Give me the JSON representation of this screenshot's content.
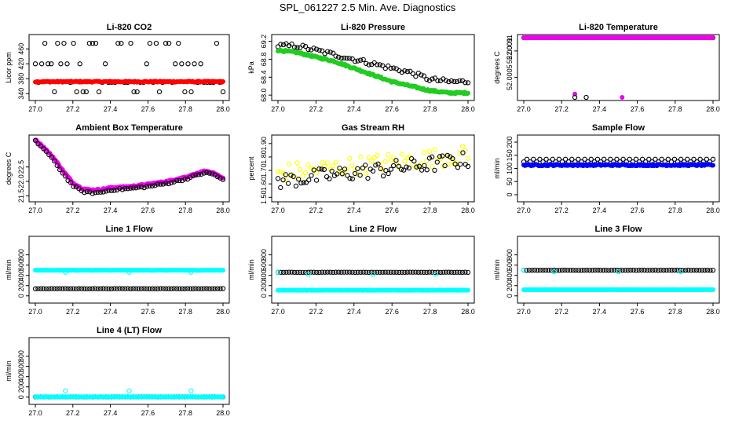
{
  "title": "SPL_061227  2.5 Min. Ave. Diagnostics",
  "colors": {
    "red": "#ff0000",
    "green": "#22cc22",
    "magenta": "#ee00ee",
    "yellow": "#ffff00",
    "blue": "#0000ff",
    "cyan": "#00ffff",
    "black": "#000000"
  },
  "x_ticks": [
    "27.0",
    "27.2",
    "27.4",
    "27.6",
    "27.8",
    "28.0"
  ],
  "chart_data": [
    {
      "type": "scatter",
      "title": "Li-820 CO2",
      "ylabel": "Licor ppm",
      "xlim": [
        27.0,
        28.0
      ],
      "ylim": [
        330,
        490
      ],
      "y_ticks": [
        "340",
        "380",
        "420",
        "460"
      ],
      "y_tick_values": [
        340,
        380,
        420,
        460
      ],
      "series": [
        {
          "name": "black",
          "color": "black",
          "marker": "open",
          "pattern": "co2_scatter",
          "levels": [
            345,
            370,
            420,
            475
          ]
        },
        {
          "name": "red",
          "color": "red",
          "marker": "filled",
          "pattern": "flat",
          "base": 372,
          "amp": 1.5
        }
      ]
    },
    {
      "type": "scatter",
      "title": "Li-820 Pressure",
      "ylabel": "kPa",
      "xlim": [
        27.0,
        28.0
      ],
      "ylim": [
        67.95,
        69.28
      ],
      "y_ticks": [
        "68.0",
        "68.4",
        "68.8",
        "69.2"
      ],
      "y_tick_values": [
        68.0,
        68.4,
        68.8,
        69.2
      ],
      "series": [
        {
          "name": "black",
          "color": "black",
          "marker": "open",
          "pattern": "trend",
          "x": [
            27.0,
            27.1,
            27.2,
            27.3,
            27.4,
            27.5,
            27.6,
            27.7,
            27.8,
            27.9,
            28.0
          ],
          "y": [
            69.1,
            69.1,
            69.0,
            68.9,
            68.8,
            68.7,
            68.6,
            68.5,
            68.35,
            68.3,
            68.3
          ],
          "noise": 0.05
        },
        {
          "name": "green",
          "color": "green",
          "marker": "filled",
          "pattern": "trend",
          "x": [
            27.0,
            27.1,
            27.2,
            27.3,
            27.4,
            27.5,
            27.6,
            27.7,
            27.8,
            27.9,
            28.0
          ],
          "y": [
            69.0,
            68.95,
            68.85,
            68.75,
            68.6,
            68.45,
            68.3,
            68.2,
            68.1,
            68.05,
            68.05
          ],
          "noise": 0.02
        }
      ]
    },
    {
      "type": "scatter",
      "title": "Li-820 Temperature",
      "ylabel": "degrees C",
      "xlim": [
        27.0,
        28.0
      ],
      "ylim": [
        52.0002,
        52.0011
      ],
      "y_ticks": [
        "52.0005",
        "52.0009"
      ],
      "y_tick_values": [
        52.0005,
        52.0009
      ],
      "side_ticks": [
        "52.0011"
      ],
      "series": [
        {
          "name": "black",
          "color": "black",
          "marker": "open",
          "pattern": "flat",
          "base": 52.0011,
          "amp": 0
        },
        {
          "name": "magenta",
          "color": "magenta",
          "marker": "filled",
          "pattern": "flat",
          "base": 52.0011,
          "amp": 0,
          "extra": [
            [
              27.0,
              52.0011
            ],
            [
              27.27,
              52.00025
            ],
            [
              27.52,
              52.0002
            ]
          ]
        },
        {
          "name": "black-outliers",
          "color": "black",
          "marker": "open",
          "pattern": "points",
          "points": [
            [
              27.27,
              52.0002
            ],
            [
              27.33,
              52.0002
            ]
          ]
        }
      ]
    },
    {
      "type": "scatter",
      "title": "Ambient Box Temperature",
      "ylabel": "degrees C",
      "xlim": [
        27.0,
        28.0
      ],
      "ylim": [
        21.4,
        23.5
      ],
      "y_ticks": [
        "21.5",
        "22.0",
        "22.5"
      ],
      "y_tick_values": [
        21.5,
        22.0,
        22.5
      ],
      "series": [
        {
          "name": "magenta",
          "color": "magenta",
          "marker": "filled",
          "pattern": "trend",
          "x": [
            27.0,
            27.05,
            27.1,
            27.15,
            27.2,
            27.25,
            27.3,
            27.35,
            27.4,
            27.5,
            27.6,
            27.7,
            27.8,
            27.9,
            27.95,
            28.0
          ],
          "y": [
            23.45,
            23.15,
            22.8,
            22.35,
            21.95,
            21.75,
            21.7,
            21.72,
            21.78,
            21.82,
            21.9,
            22.0,
            22.15,
            22.35,
            22.3,
            22.1
          ],
          "noise": 0.02
        },
        {
          "name": "black",
          "color": "black",
          "marker": "open",
          "pattern": "trend",
          "x": [
            27.0,
            27.05,
            27.1,
            27.15,
            27.2,
            27.25,
            27.3,
            27.35,
            27.4,
            27.5,
            27.6,
            27.7,
            27.8,
            27.9,
            27.95,
            28.0
          ],
          "y": [
            23.4,
            23.1,
            22.7,
            22.25,
            21.85,
            21.65,
            21.6,
            21.62,
            21.7,
            21.75,
            21.82,
            21.93,
            22.08,
            22.3,
            22.25,
            22.05
          ],
          "noise": 0.03
        }
      ]
    },
    {
      "type": "scatter",
      "title": "Gas Stream RH",
      "ylabel": "percent",
      "xlim": [
        27.0,
        28.0
      ],
      "ylim": [
        1.49,
        1.94
      ],
      "y_ticks": [
        "1.50",
        "1.60",
        "1.70",
        "1.80",
        "1.90"
      ],
      "y_tick_values": [
        1.5,
        1.6,
        1.7,
        1.8,
        1.9
      ],
      "series": [
        {
          "name": "yellow",
          "color": "yellow",
          "marker": "open",
          "pattern": "trend",
          "x": [
            27.0,
            27.5,
            28.0
          ],
          "y": [
            1.68,
            1.75,
            1.82
          ],
          "noise": 0.07
        },
        {
          "name": "black",
          "color": "black",
          "marker": "open",
          "pattern": "trend",
          "x": [
            27.0,
            27.5,
            28.0
          ],
          "y": [
            1.62,
            1.7,
            1.78
          ],
          "noise": 0.06,
          "count": 75
        }
      ]
    },
    {
      "type": "scatter",
      "title": "Sample Flow",
      "ylabel": "ml/min",
      "xlim": [
        27.0,
        28.0
      ],
      "ylim": [
        -15,
        215
      ],
      "y_ticks": [
        "0",
        "50",
        "100",
        "150",
        "200"
      ],
      "y_tick_values": [
        0,
        50,
        100,
        150,
        200
      ],
      "series": [
        {
          "name": "black",
          "color": "black",
          "marker": "open",
          "pattern": "alt",
          "levels": [
            125,
            135
          ]
        },
        {
          "name": "blue",
          "color": "blue",
          "marker": "filled",
          "pattern": "flat",
          "base": 113,
          "amp": 3
        }
      ]
    },
    {
      "type": "scatter",
      "title": "Line 1 Flow",
      "ylabel": "ml/min",
      "xlim": [
        27.0,
        28.0
      ],
      "ylim": [
        -80,
        1100
      ],
      "y_ticks": [
        "0",
        "200",
        "400",
        "600",
        "800"
      ],
      "y_tick_values": [
        0,
        200,
        400,
        600,
        800
      ],
      "series": [
        {
          "name": "cyan",
          "color": "cyan",
          "marker": "filled",
          "pattern": "flat",
          "base": 500,
          "amp": 3,
          "spikes": [
            [
              27.16,
              460
            ],
            [
              27.5,
              460
            ],
            [
              27.83,
              460
            ]
          ]
        },
        {
          "name": "black",
          "color": "black",
          "marker": "open",
          "pattern": "flat",
          "base": 140,
          "amp": 2
        }
      ]
    },
    {
      "type": "scatter",
      "title": "Line 2 Flow",
      "ylabel": "ml/min",
      "xlim": [
        27.0,
        28.0
      ],
      "ylim": [
        -80,
        1100
      ],
      "y_ticks": [
        "0",
        "200",
        "400",
        "600",
        "800"
      ],
      "y_tick_values": [
        0,
        200,
        400,
        600,
        800
      ],
      "series": [
        {
          "name": "black",
          "color": "black",
          "marker": "open",
          "pattern": "flat",
          "base": 460,
          "amp": 2
        },
        {
          "name": "cyan",
          "color": "cyan",
          "marker": "filled",
          "pattern": "flat",
          "base": 110,
          "amp": 2,
          "spikes": [
            [
              27.16,
              420
            ],
            [
              27.5,
              420
            ],
            [
              27.83,
              420
            ],
            [
              27.0,
              460
            ]
          ]
        }
      ]
    },
    {
      "type": "scatter",
      "title": "Line 3 Flow",
      "ylabel": "ml/min",
      "xlim": [
        27.0,
        28.0
      ],
      "ylim": [
        -80,
        1100
      ],
      "y_ticks": [
        "0",
        "200",
        "400",
        "600",
        "800"
      ],
      "y_tick_values": [
        0,
        200,
        400,
        600,
        800
      ],
      "series": [
        {
          "name": "black",
          "color": "black",
          "marker": "open",
          "pattern": "flat",
          "base": 500,
          "amp": 2
        },
        {
          "name": "cyan",
          "color": "cyan",
          "marker": "filled",
          "pattern": "flat",
          "base": 120,
          "amp": 2,
          "spikes": [
            [
              27.16,
              470
            ],
            [
              27.5,
              470
            ],
            [
              27.83,
              470
            ],
            [
              27.0,
              500
            ]
          ]
        }
      ]
    },
    {
      "type": "scatter",
      "title": "Line 4 (LT) Flow",
      "ylabel": "ml/min",
      "xlim": [
        27.0,
        28.0
      ],
      "ylim": [
        -80,
        1100
      ],
      "y_ticks": [
        "0",
        "200",
        "400",
        "600",
        "800"
      ],
      "y_tick_values": [
        0,
        200,
        400,
        600,
        800
      ],
      "series": [
        {
          "name": "black",
          "color": "black",
          "marker": "open",
          "pattern": "flat",
          "base": 5,
          "amp": 1
        },
        {
          "name": "cyan",
          "color": "cyan",
          "marker": "filled",
          "pattern": "flat",
          "base": 5,
          "amp": 1,
          "spikes": [
            [
              27.16,
              120
            ],
            [
              27.5,
              120
            ],
            [
              27.83,
              120
            ]
          ]
        }
      ]
    }
  ]
}
